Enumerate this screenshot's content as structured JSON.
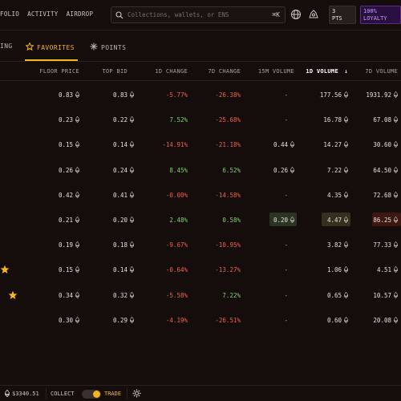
{
  "nav": {
    "links": [
      "FOLIO",
      "ACTIVITY",
      "AIRDROP"
    ],
    "search_placeholder": "Collections, wallets, or ENS",
    "search_shortcut": "⌘K",
    "pts_value": "3",
    "pts_label": "PTS",
    "loyalty_value": "100%",
    "loyalty_label": "LOYALTY"
  },
  "tabs": [
    {
      "label": "ING",
      "icon": null
    },
    {
      "label": "FAVORITES",
      "icon": "star-outline-icon"
    },
    {
      "label": "POINTS",
      "icon": "sparkle-icon"
    }
  ],
  "columns": [
    "FLOOR PRICE",
    "TOP BID",
    "1D CHANGE",
    "7D CHANGE",
    "15M VOLUME",
    "1D VOLUME",
    "7D VOLUME"
  ],
  "sort_arrow": "↓",
  "rows": [
    {
      "floor": "0.83",
      "bid": "0.83",
      "d1": "-5.77%",
      "d7": "-26.38%",
      "v15": "-",
      "v1d": "177.56",
      "v7d": "1931.92"
    },
    {
      "floor": "0.23",
      "bid": "0.22",
      "d1": "7.52%",
      "d7": "-25.68%",
      "v15": "-",
      "v1d": "16.78",
      "v7d": "67.08"
    },
    {
      "floor": "0.15",
      "bid": "0.14",
      "d1": "-14.91%",
      "d7": "-21.18%",
      "v15": "0.44",
      "v1d": "14.27",
      "v7d": "30.60"
    },
    {
      "floor": "0.26",
      "bid": "0.24",
      "d1": "8.45%",
      "d7": "6.52%",
      "v15": "0.26",
      "v1d": "7.22",
      "v7d": "64.50"
    },
    {
      "floor": "0.42",
      "bid": "0.41",
      "d1": "-0.00%",
      "d7": "-14.58%",
      "v15": "-",
      "v1d": "4.35",
      "v7d": "72.68"
    },
    {
      "floor": "0.21",
      "bid": "0.20",
      "d1": "2.48%",
      "d7": "0.58%",
      "v15": "0.20",
      "v1d": "4.47",
      "v7d": "86.25"
    },
    {
      "floor": "0.19",
      "bid": "0.18",
      "d1": "-9.67%",
      "d7": "-10.95%",
      "v15": "-",
      "v1d": "3.82",
      "v7d": "77.33"
    },
    {
      "floor": "0.15",
      "bid": "0.14",
      "d1": "-0.64%",
      "d7": "-13.27%",
      "v15": "-",
      "v1d": "1.06",
      "v7d": "4.51"
    },
    {
      "floor": "0.34",
      "bid": "0.32",
      "d1": "-5.58%",
      "d7": "7.22%",
      "v15": "-",
      "v1d": "0.65",
      "v7d": "10.57"
    },
    {
      "floor": "0.30",
      "bid": "0.29",
      "d1": "-4.19%",
      "d7": "-26.51%",
      "v15": "-",
      "v1d": "0.60",
      "v7d": "20.08"
    }
  ],
  "bottom": {
    "eth_price": "$3340.51",
    "collect_label": "COLLECT",
    "trade_label": "TRADE"
  },
  "colors": {
    "accent": "#f3b61f",
    "negative": "#f0624a",
    "positive": "#7fd36b",
    "loyalty": "#c79bf5"
  }
}
